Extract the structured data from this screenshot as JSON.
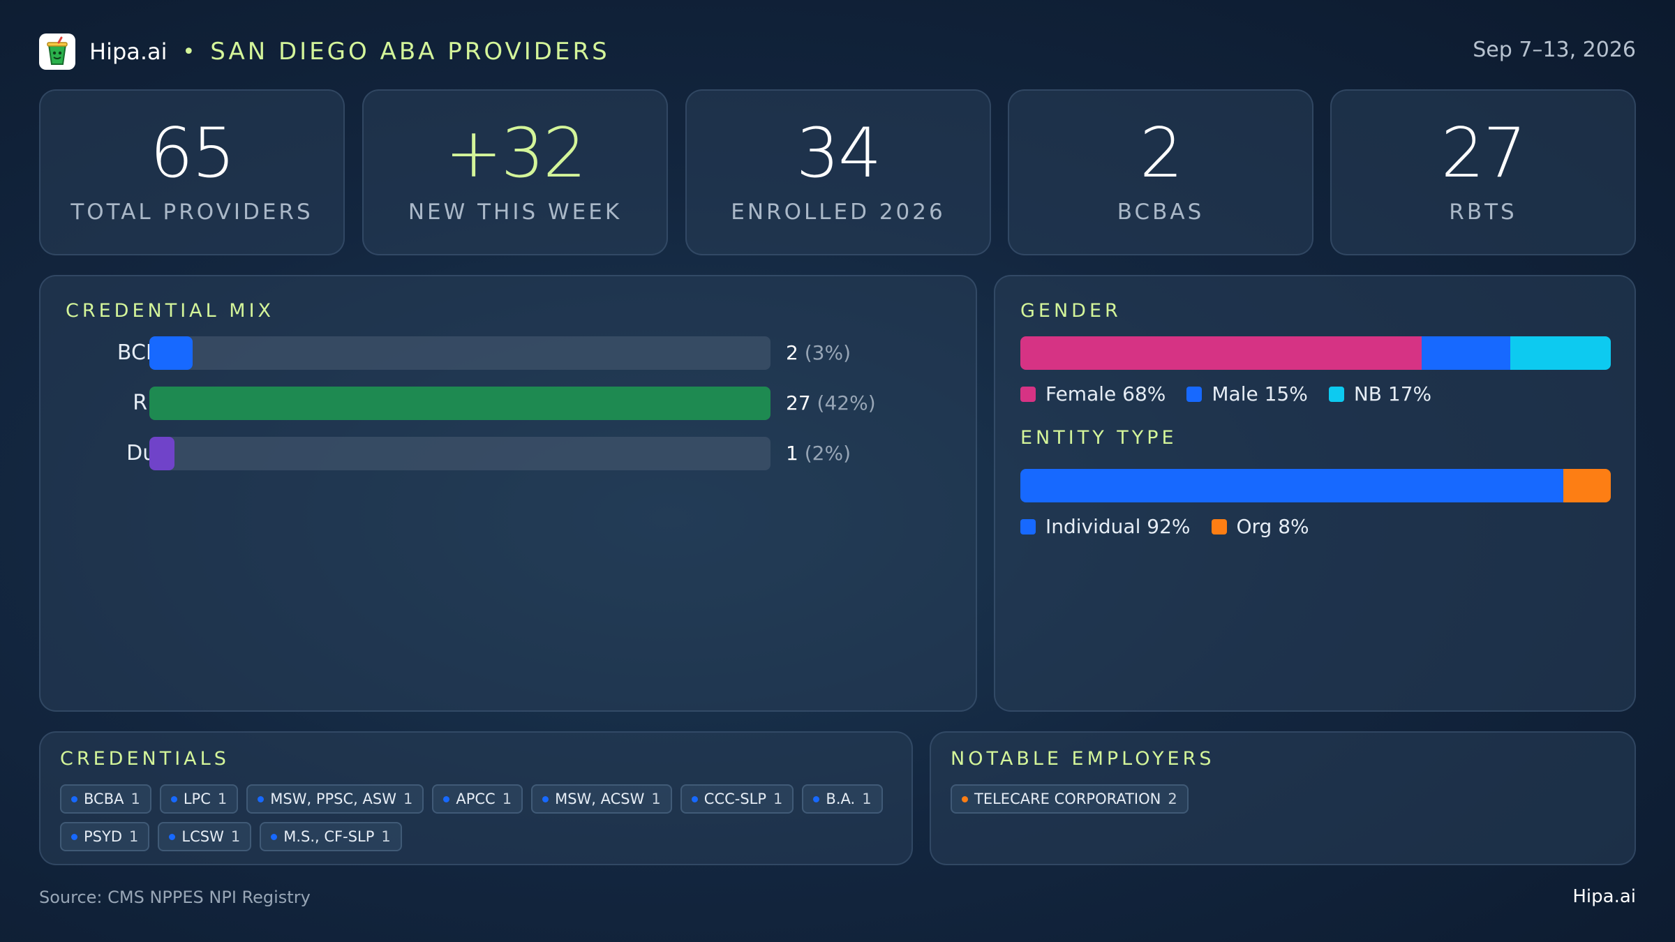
{
  "header": {
    "brand": "Hipa.ai",
    "separator": "•",
    "subtitle": "SAN DIEGO ABA PROVIDERS",
    "date_range": "Sep 7–13, 2026"
  },
  "stats": [
    {
      "value": "65",
      "label": "TOTAL PROVIDERS"
    },
    {
      "value": "+32",
      "label": "NEW THIS WEEK"
    },
    {
      "value": "34",
      "label": "ENROLLED 2026"
    },
    {
      "value": "2",
      "label": "BCBAS"
    },
    {
      "value": "27",
      "label": "RBTS"
    }
  ],
  "credential_mix": {
    "title": "CREDENTIAL MIX",
    "rows": [
      {
        "label": "BCBA",
        "count": "2",
        "pct_label": "(3%)",
        "fill": 0.07,
        "color": "#1769ff"
      },
      {
        "label": "RBT",
        "count": "27",
        "pct_label": "(42%)",
        "fill": 1.0,
        "color": "#1e8a51"
      },
      {
        "label": "Dual",
        "count": "1",
        "pct_label": "(2%)",
        "fill": 0.04,
        "color": "#7043c9"
      }
    ]
  },
  "gender": {
    "title": "GENDER",
    "segments": [
      {
        "label": "Female 68%",
        "value": 68,
        "color": "#d63384"
      },
      {
        "label": "Male 15%",
        "value": 15,
        "color": "#1769ff"
      },
      {
        "label": "NB 17%",
        "value": 17,
        "color": "#0dcaf0"
      }
    ]
  },
  "entity_type": {
    "title": "ENTITY TYPE",
    "segments": [
      {
        "label": "Individual 92%",
        "value": 92,
        "color": "#1769ff"
      },
      {
        "label": "Org 8%",
        "value": 8,
        "color": "#fd7e14"
      }
    ]
  },
  "credentials": {
    "title": "CREDENTIALS",
    "dot_color": "#1769ff",
    "items": [
      {
        "name": "BCBA",
        "count": "1"
      },
      {
        "name": "LPC",
        "count": "1"
      },
      {
        "name": "MSW, PPSC, ASW",
        "count": "1"
      },
      {
        "name": "APCC",
        "count": "1"
      },
      {
        "name": "MSW, ACSW",
        "count": "1"
      },
      {
        "name": "CCC-SLP",
        "count": "1"
      },
      {
        "name": "B.A.",
        "count": "1"
      },
      {
        "name": "PSYD",
        "count": "1"
      },
      {
        "name": "LCSW",
        "count": "1"
      },
      {
        "name": "M.S., CF-SLP",
        "count": "1"
      }
    ]
  },
  "employers": {
    "title": "NOTABLE EMPLOYERS",
    "dot_color": "#fd7e14",
    "items": [
      {
        "name": "TELECARE CORPORATION",
        "count": "2"
      }
    ]
  },
  "footer": {
    "source": "Source: CMS NPPES NPI Registry",
    "brand": "Hipa.ai"
  }
}
